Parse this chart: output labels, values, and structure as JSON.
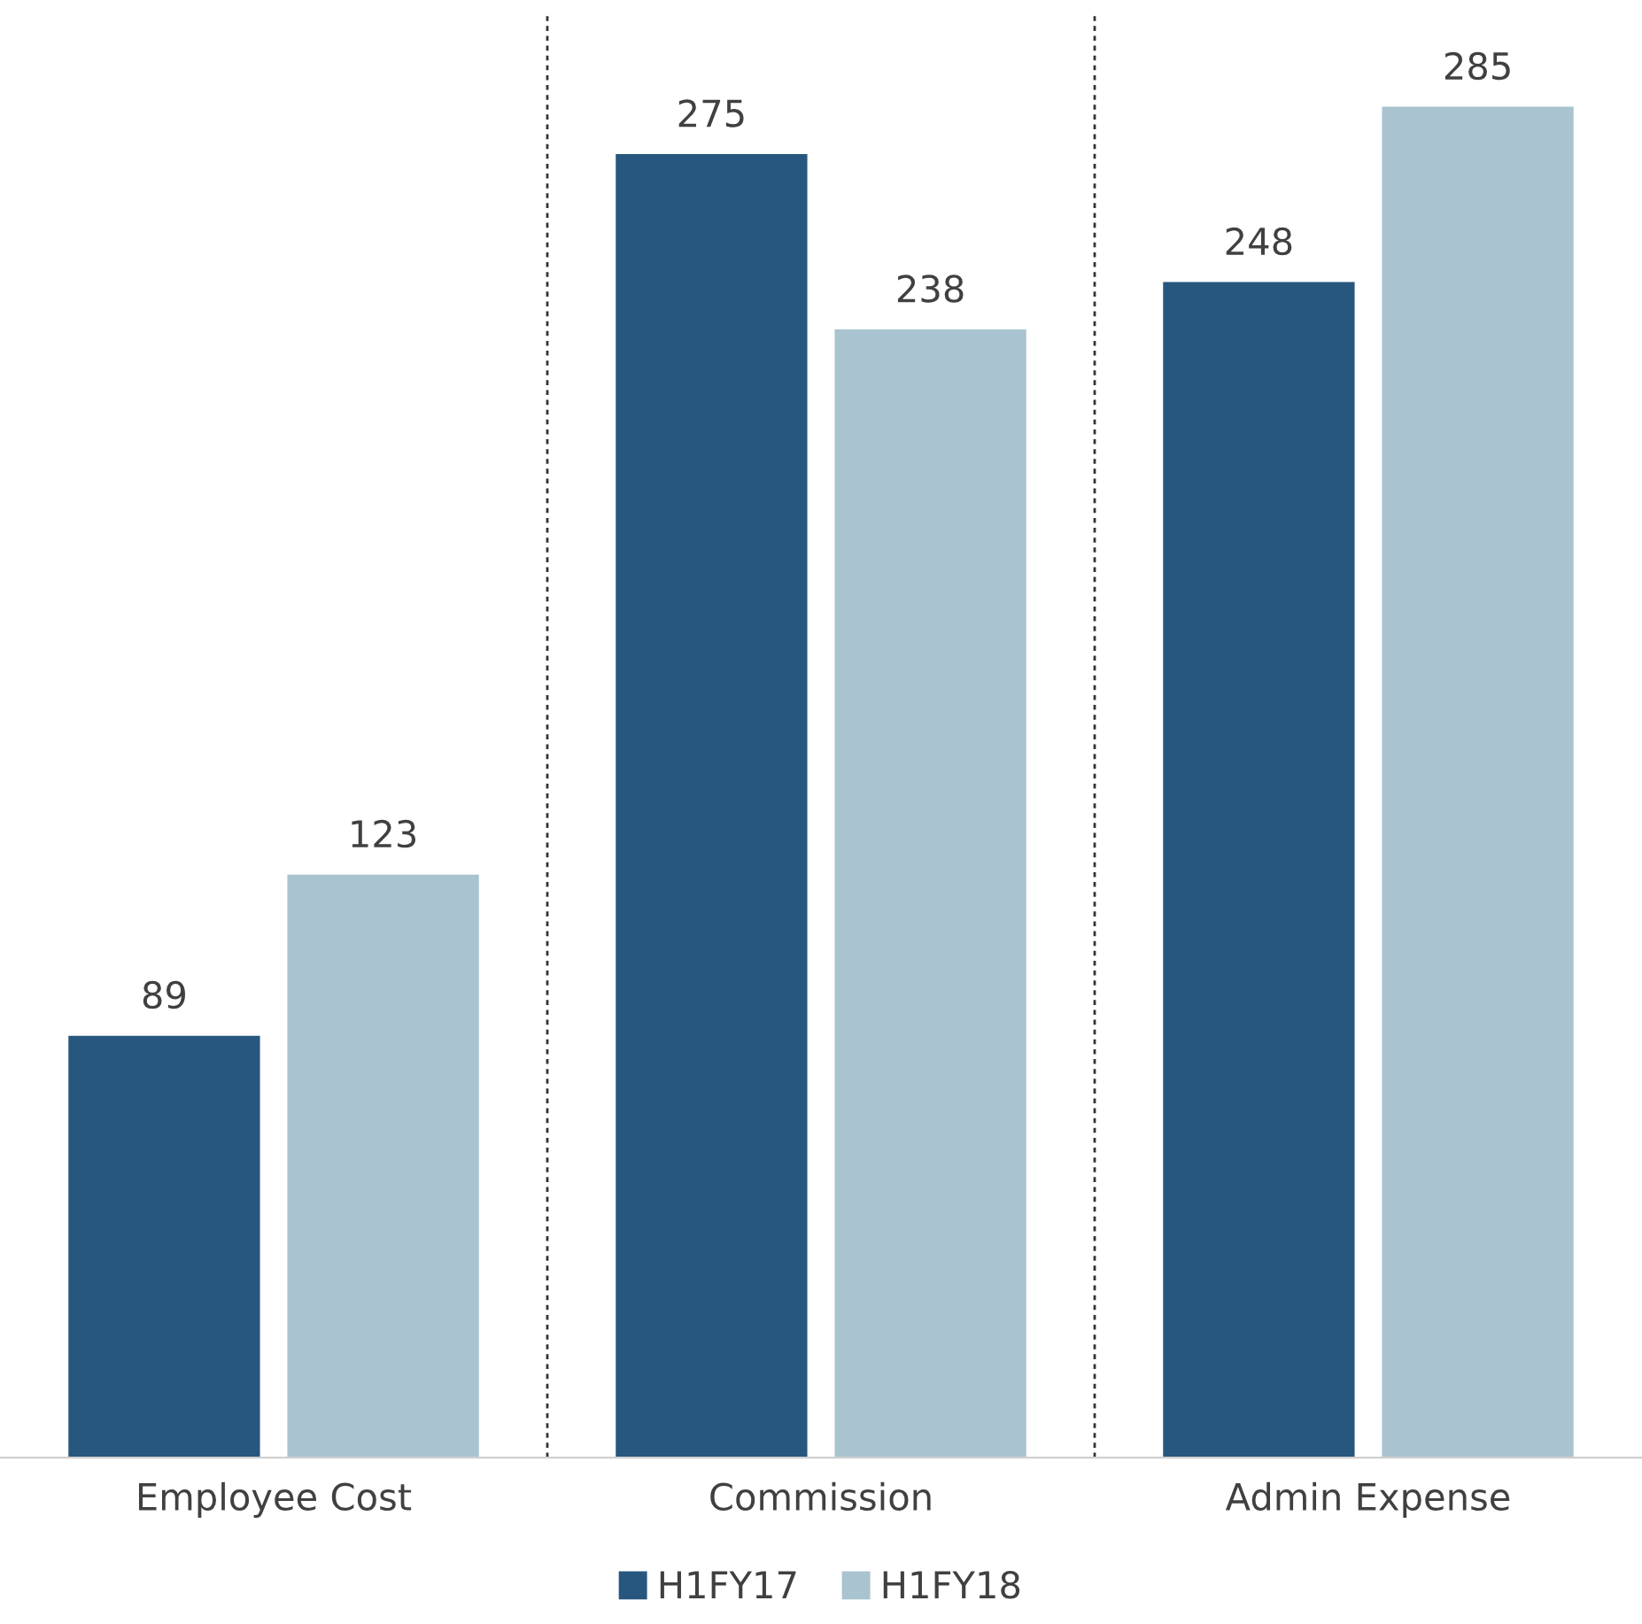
{
  "chart_data": {
    "type": "bar",
    "categories": [
      "Employee Cost",
      "Commission",
      "Admin Expense"
    ],
    "series": [
      {
        "name": "H1FY17",
        "color": "#27577e",
        "values": [
          89,
          275,
          248
        ]
      },
      {
        "name": "H1FY18",
        "color": "#a9c3d0",
        "values": [
          123,
          238,
          285
        ]
      }
    ],
    "data_labels": true,
    "legend": "bottom",
    "grid": false
  }
}
